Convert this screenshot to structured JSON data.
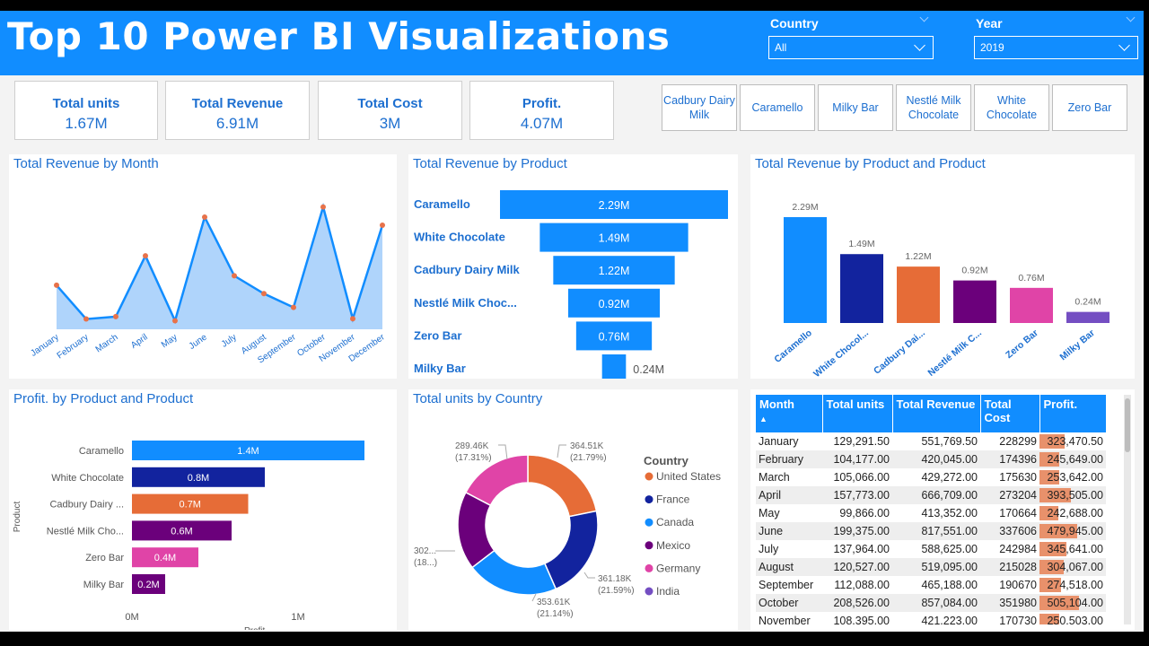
{
  "header": {
    "title": "Top 10 Power BI Visualizations",
    "country_label": "Country",
    "country_value": "All",
    "year_label": "Year",
    "year_value": "2019"
  },
  "kpis": [
    {
      "label": "Total units",
      "value": "1.67M"
    },
    {
      "label": "Total Revenue",
      "value": "6.91M"
    },
    {
      "label": "Total Cost",
      "value": "3M"
    },
    {
      "label": "Profit.",
      "value": "4.07M"
    }
  ],
  "product_buttons": [
    "Cadbury Dairy Milk",
    "Caramello",
    "Milky Bar",
    "Nestlé Milk Chocolate",
    "White Chocolate",
    "Zero Bar"
  ],
  "colors": {
    "accent": "#118dff",
    "navy": "#12239e",
    "orange": "#e66c37",
    "purple": "#6b007b",
    "pink": "#e044a7",
    "violet": "#744ec2",
    "light": "#a6cffb",
    "marker": "#e8724a"
  },
  "revenue_by_month": {
    "title": "Total Revenue by Month",
    "chart_data": {
      "type": "area",
      "categories": [
        "January",
        "February",
        "March",
        "April",
        "May",
        "June",
        "July",
        "August",
        "September",
        "October",
        "November",
        "December"
      ],
      "values": [
        551769.5,
        420045,
        429272,
        666709,
        413352,
        817551,
        588625,
        519095,
        465188,
        857084,
        421223,
        786000
      ]
    }
  },
  "revenue_by_product": {
    "title": "Total Revenue by Product",
    "chart_data": {
      "type": "bar",
      "categories": [
        "Caramello",
        "White Chocolate",
        "Cadbury Dairy Milk",
        "Nestlé Milk Choc...",
        "Zero Bar",
        "Milky Bar"
      ],
      "values": [
        2.29,
        1.49,
        1.22,
        0.92,
        0.76,
        0.24
      ],
      "labels": [
        "2.29M",
        "1.49M",
        "1.22M",
        "0.92M",
        "0.76M",
        "0.24M"
      ]
    }
  },
  "revenue_by_product_column": {
    "title": "Total Revenue by Product and Product",
    "chart_data": {
      "type": "bar",
      "categories": [
        "Caramello",
        "White Chocol...",
        "Cadbury Dai...",
        "Nestlé Milk C...",
        "Zero Bar",
        "Milky Bar"
      ],
      "values": [
        2.29,
        1.49,
        1.22,
        0.92,
        0.76,
        0.24
      ],
      "labels": [
        "2.29M",
        "1.49M",
        "1.22M",
        "0.92M",
        "0.76M",
        "0.24M"
      ],
      "colors": [
        "#118dff",
        "#12239e",
        "#e66c37",
        "#6b007b",
        "#e044a7",
        "#744ec2"
      ]
    }
  },
  "profit_by_product": {
    "title": "Profit. by Product and Product",
    "chart_data": {
      "type": "bar",
      "categories": [
        "Caramello",
        "White Chocolate",
        "Cadbury Dairy ...",
        "Nestlé Milk Cho...",
        "Zero Bar",
        "Milky Bar"
      ],
      "values": [
        1.4,
        0.8,
        0.7,
        0.6,
        0.4,
        0.2
      ],
      "labels": [
        "1.4M",
        "0.8M",
        "0.7M",
        "0.6M",
        "0.4M",
        "0.2M"
      ],
      "colors": [
        "#118dff",
        "#12239e",
        "#e66c37",
        "#6b007b",
        "#e044a7",
        "#6b007b"
      ],
      "xticks": [
        "0M",
        "1M"
      ],
      "xlabel": "Profit.",
      "ylabel": "Product",
      "xlim": [
        0,
        1.4
      ]
    }
  },
  "units_by_country": {
    "title": "Total units by Country",
    "legend_title": "Country",
    "chart_data": {
      "type": "pie",
      "categories": [
        "United States",
        "France",
        "Canada",
        "Mexico",
        "Germany",
        "India"
      ],
      "values": [
        364.51,
        361.18,
        353.61,
        302,
        289.46,
        0
      ],
      "colors": [
        "#e66c37",
        "#12239e",
        "#118dff",
        "#6b007b",
        "#e044a7",
        "#744ec2"
      ],
      "slice_labels": [
        [
          "364.51K",
          "(21.79%)"
        ],
        [
          "361.18K",
          "(21.59%)"
        ],
        [
          "353.61K",
          "(21.14%)"
        ],
        [
          "302...",
          "(18...)"
        ],
        [
          "289.46K",
          "(17.31%)"
        ]
      ]
    }
  },
  "table": {
    "columns": [
      "Month",
      "Total units",
      "Total Revenue",
      "Total Cost",
      "Profit."
    ],
    "rows": [
      [
        "January",
        "129,291.50",
        "551,769.50",
        "228299",
        "323,470.50"
      ],
      [
        "February",
        "104,177.00",
        "420,045.00",
        "174396",
        "245,649.00"
      ],
      [
        "March",
        "105,066.00",
        "429,272.00",
        "175630",
        "253,642.00"
      ],
      [
        "April",
        "157,773.00",
        "666,709.00",
        "273204",
        "393,505.00"
      ],
      [
        "May",
        "99,866.00",
        "413,352.00",
        "170664",
        "242,688.00"
      ],
      [
        "June",
        "199,375.00",
        "817,551.00",
        "337606",
        "479,945.00"
      ],
      [
        "July",
        "137,964.00",
        "588,625.00",
        "242984",
        "345,641.00"
      ],
      [
        "August",
        "120,527.00",
        "519,095.00",
        "215028",
        "304,067.00"
      ],
      [
        "September",
        "112,088.00",
        "465,188.00",
        "190670",
        "274,518.00"
      ],
      [
        "October",
        "208,526.00",
        "857,084.00",
        "351980",
        "505,104.00"
      ],
      [
        "November",
        "108,395.00",
        "421,223.00",
        "170730",
        "250,503.00"
      ]
    ],
    "profit_values": [
      323470.5,
      245649,
      253642,
      393505,
      242688,
      479945,
      345641,
      304067,
      274518,
      505104,
      250503
    ]
  }
}
